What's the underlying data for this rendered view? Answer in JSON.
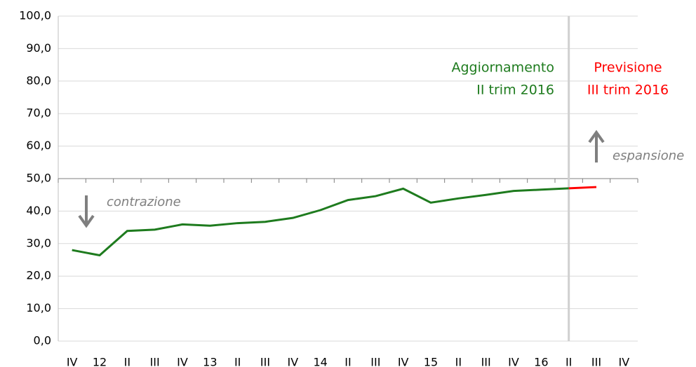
{
  "chart_data": {
    "type": "line",
    "categories": [
      "IV",
      "12",
      "II",
      "III",
      "IV",
      "13",
      "II",
      "III",
      "IV",
      "14",
      "II",
      "III",
      "IV",
      "15",
      "II",
      "III",
      "IV",
      "16",
      "II",
      "III",
      "IV"
    ],
    "series": [
      {
        "name": "Aggiornamento II trim 2016",
        "color": "#1e7b1e",
        "values": [
          28.0,
          26.4,
          33.9,
          34.3,
          35.9,
          35.5,
          36.3,
          36.7,
          37.9,
          40.3,
          43.4,
          44.6,
          46.9,
          42.6,
          43.9,
          45.0,
          46.2,
          46.6,
          47.0,
          null,
          null
        ]
      },
      {
        "name": "Previsione III trim 2016",
        "color": "#ff0000",
        "values": [
          null,
          null,
          null,
          null,
          null,
          null,
          null,
          null,
          null,
          null,
          null,
          null,
          null,
          null,
          null,
          null,
          null,
          null,
          47.0,
          47.4,
          null
        ]
      }
    ],
    "ylim": [
      0,
      100
    ],
    "yticks": [
      {
        "value": 0,
        "label": "0,0"
      },
      {
        "value": 10,
        "label": "10,0"
      },
      {
        "value": 20,
        "label": "20,0"
      },
      {
        "value": 30,
        "label": "30,0"
      },
      {
        "value": 40,
        "label": "40,0"
      },
      {
        "value": 50,
        "label": "50,0"
      },
      {
        "value": 60,
        "label": "60,0"
      },
      {
        "value": 70,
        "label": "70,0"
      },
      {
        "value": 80,
        "label": "80,0"
      },
      {
        "value": 90,
        "label": "90,0"
      },
      {
        "value": 100,
        "label": "100,0"
      }
    ],
    "x_axis_at": 50,
    "grid": true,
    "annotations": [
      {
        "lines": [
          "Aggiornamento",
          "II trim 2016"
        ],
        "color": "#1e7b1e"
      },
      {
        "lines": [
          "Previsione",
          "III trim 2016"
        ],
        "color": "#ff0000"
      },
      {
        "text": "contrazione",
        "color": "#7f7f7f"
      },
      {
        "text": "espansione",
        "color": "#7f7f7f"
      }
    ]
  }
}
